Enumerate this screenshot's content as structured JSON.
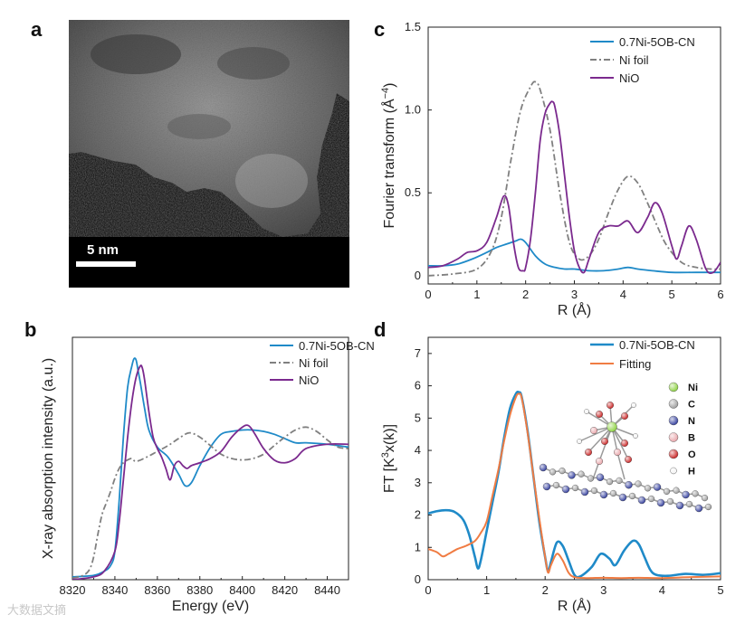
{
  "panels": {
    "a": {
      "letter": "a",
      "scale_bar_label": "5 nm"
    },
    "b": {
      "letter": "b"
    },
    "c": {
      "letter": "c"
    },
    "d": {
      "letter": "d"
    }
  },
  "colors": {
    "sample": "#1f8ac8",
    "ni_foil": "#808080",
    "nio": "#7b2a8e",
    "fitting": "#f07c43"
  },
  "inset_legend": {
    "atoms": [
      {
        "label": "Ni",
        "color": "#8bd13d"
      },
      {
        "label": "C",
        "color": "#9a9a9a"
      },
      {
        "label": "N",
        "color": "#2e3a9b"
      },
      {
        "label": "B",
        "color": "#e8a3a8"
      },
      {
        "label": "O",
        "color": "#c81e1e"
      },
      {
        "label": "H",
        "color": "#f2f2f2"
      }
    ]
  },
  "watermark": "大数据文摘",
  "chart_data": [
    {
      "id": "b",
      "type": "line",
      "title": "",
      "xlabel": "Energy (eV)",
      "ylabel": "X-ray absorption intensity (a.u.)",
      "xlim": [
        8320,
        8450
      ],
      "ylim": [
        0,
        1.7
      ],
      "xticks": [
        8320,
        8340,
        8360,
        8380,
        8400,
        8420,
        8440
      ],
      "yticks": [],
      "legend_position": "top-right",
      "series": [
        {
          "name": "0.7Ni-5OB-CN",
          "color": "#1f8ac8",
          "dash": "",
          "x": [
            8320,
            8330,
            8335,
            8338,
            8340,
            8342,
            8344,
            8346,
            8348,
            8349,
            8350,
            8351,
            8352,
            8354,
            8356,
            8360,
            8365,
            8370,
            8373,
            8376,
            8380,
            8385,
            8390,
            8395,
            8400,
            8405,
            8410,
            8415,
            8420,
            8425,
            8430,
            8440,
            8450
          ],
          "y": [
            0.02,
            0.03,
            0.06,
            0.1,
            0.2,
            0.55,
            1.0,
            1.35,
            1.5,
            1.55,
            1.54,
            1.46,
            1.38,
            1.2,
            1.05,
            0.93,
            0.86,
            0.74,
            0.66,
            0.68,
            0.8,
            0.93,
            1.02,
            1.04,
            1.05,
            1.05,
            1.04,
            1.02,
            0.99,
            0.96,
            0.96,
            0.95,
            0.93
          ]
        },
        {
          "name": "Ni foil",
          "color": "#808080",
          "dash": "7,3,2,3",
          "x": [
            8320,
            8325,
            8328,
            8330,
            8332,
            8334,
            8336,
            8338,
            8340,
            8342,
            8344,
            8346,
            8348,
            8350,
            8355,
            8360,
            8365,
            8370,
            8375,
            8380,
            8385,
            8390,
            8395,
            8400,
            8405,
            8410,
            8415,
            8420,
            8425,
            8430,
            8435,
            8440,
            8445,
            8450
          ],
          "y": [
            0.01,
            0.03,
            0.07,
            0.16,
            0.32,
            0.46,
            0.54,
            0.62,
            0.71,
            0.78,
            0.82,
            0.84,
            0.85,
            0.83,
            0.86,
            0.9,
            0.94,
            0.99,
            1.03,
            1.0,
            0.94,
            0.88,
            0.85,
            0.84,
            0.85,
            0.88,
            0.94,
            1.0,
            1.05,
            1.07,
            1.04,
            0.98,
            0.93,
            0.92
          ]
        },
        {
          "name": "NiO",
          "color": "#7b2a8e",
          "dash": "",
          "x": [
            8320,
            8330,
            8335,
            8340,
            8342,
            8344,
            8346,
            8348,
            8350,
            8352,
            8353,
            8354,
            8356,
            8358,
            8360,
            8362,
            8364,
            8366,
            8368,
            8370,
            8372,
            8374,
            8376,
            8380,
            8385,
            8390,
            8395,
            8400,
            8403,
            8406,
            8410,
            8415,
            8420,
            8425,
            8430,
            8440,
            8450
          ],
          "y": [
            0.0,
            0.02,
            0.06,
            0.2,
            0.4,
            0.7,
            1.0,
            1.25,
            1.42,
            1.5,
            1.48,
            1.4,
            1.18,
            1.0,
            0.92,
            0.86,
            0.78,
            0.7,
            0.8,
            0.83,
            0.8,
            0.78,
            0.8,
            0.82,
            0.85,
            0.9,
            1.0,
            1.07,
            1.08,
            1.02,
            0.92,
            0.84,
            0.82,
            0.85,
            0.92,
            0.95,
            0.95
          ]
        }
      ]
    },
    {
      "id": "c",
      "type": "line",
      "title": "",
      "xlabel": "R (Å)",
      "ylabel": "Fourier transform (Å",
      "ylabel_sup": "−4",
      "ylabel_end": ")",
      "xlim": [
        0,
        6
      ],
      "ylim": [
        -0.05,
        1.5
      ],
      "xticks": [
        0,
        1,
        2,
        3,
        4,
        5,
        6
      ],
      "yticks": [
        0,
        0.5,
        1.0,
        1.5
      ],
      "ytick_labels": [
        "0",
        "0.5",
        "1.0",
        "1.5"
      ],
      "legend_position": "top-right",
      "series": [
        {
          "name": "0.7Ni-5OB-CN",
          "color": "#1f8ac8",
          "dash": "",
          "x": [
            0,
            0.3,
            0.6,
            0.9,
            1.2,
            1.4,
            1.6,
            1.8,
            1.9,
            2.0,
            2.2,
            2.4,
            2.6,
            2.8,
            3.0,
            3.3,
            3.6,
            3.9,
            4.1,
            4.3,
            4.6,
            5.0,
            5.5,
            6.0
          ],
          "y": [
            0.06,
            0.06,
            0.07,
            0.1,
            0.14,
            0.17,
            0.19,
            0.21,
            0.22,
            0.2,
            0.12,
            0.07,
            0.05,
            0.04,
            0.04,
            0.03,
            0.03,
            0.04,
            0.05,
            0.04,
            0.03,
            0.02,
            0.02,
            0.02
          ]
        },
        {
          "name": "Ni foil",
          "color": "#808080",
          "dash": "7,3,2,3",
          "x": [
            0,
            0.5,
            1.0,
            1.3,
            1.5,
            1.7,
            1.9,
            2.1,
            2.2,
            2.3,
            2.5,
            2.7,
            2.9,
            3.1,
            3.3,
            3.5,
            3.7,
            3.9,
            4.1,
            4.3,
            4.5,
            4.7,
            4.9,
            5.2,
            5.5,
            5.8,
            6.0
          ],
          "y": [
            0.0,
            0.01,
            0.04,
            0.15,
            0.35,
            0.7,
            1.0,
            1.14,
            1.17,
            1.12,
            0.88,
            0.5,
            0.2,
            0.1,
            0.12,
            0.22,
            0.38,
            0.52,
            0.6,
            0.56,
            0.44,
            0.3,
            0.18,
            0.08,
            0.05,
            0.04,
            0.04
          ]
        },
        {
          "name": "NiO",
          "color": "#7b2a8e",
          "dash": "",
          "x": [
            0,
            0.3,
            0.6,
            0.8,
            1.0,
            1.2,
            1.4,
            1.55,
            1.65,
            1.75,
            1.85,
            1.95,
            2.0,
            2.1,
            2.2,
            2.3,
            2.4,
            2.5,
            2.55,
            2.6,
            2.7,
            2.8,
            2.9,
            3.0,
            3.1,
            3.2,
            3.3,
            3.5,
            3.7,
            3.9,
            4.1,
            4.3,
            4.5,
            4.65,
            4.8,
            5.0,
            5.1,
            5.2,
            5.35,
            5.5,
            5.7,
            5.85,
            6.0
          ],
          "y": [
            0.05,
            0.06,
            0.1,
            0.14,
            0.15,
            0.2,
            0.35,
            0.48,
            0.42,
            0.2,
            0.05,
            0.03,
            0.05,
            0.22,
            0.5,
            0.82,
            0.98,
            1.04,
            1.05,
            1.02,
            0.85,
            0.6,
            0.35,
            0.15,
            0.05,
            0.02,
            0.1,
            0.26,
            0.3,
            0.3,
            0.33,
            0.26,
            0.35,
            0.44,
            0.38,
            0.18,
            0.1,
            0.18,
            0.3,
            0.22,
            0.04,
            0.02,
            0.08
          ]
        }
      ]
    },
    {
      "id": "d",
      "type": "line",
      "title": "",
      "xlabel": "R (Å)",
      "ylabel": "FT [K",
      "ylabel_sup": "3",
      "ylabel_end": "x(k)]",
      "xlim": [
        0,
        5
      ],
      "ylim": [
        0,
        7.5
      ],
      "xticks": [
        0,
        1,
        2,
        3,
        4,
        5
      ],
      "yticks": [
        0,
        1,
        2,
        3,
        4,
        5,
        6,
        7
      ],
      "legend_position": "top-right",
      "series": [
        {
          "name": "0.7Ni-5OB-CN",
          "color": "#1f8ac8",
          "dash": "",
          "width": 2.6,
          "x": [
            0,
            0.15,
            0.3,
            0.45,
            0.6,
            0.7,
            0.8,
            0.85,
            0.9,
            1.0,
            1.1,
            1.2,
            1.3,
            1.4,
            1.5,
            1.55,
            1.6,
            1.7,
            1.8,
            1.9,
            2.0,
            2.05,
            2.1,
            2.2,
            2.3,
            2.4,
            2.5,
            2.6,
            2.8,
            2.95,
            3.1,
            3.2,
            3.35,
            3.5,
            3.6,
            3.7,
            3.8,
            3.9,
            4.1,
            4.4,
            4.7,
            5.0
          ],
          "y": [
            2.05,
            2.12,
            2.15,
            2.1,
            1.85,
            1.4,
            0.7,
            0.35,
            0.6,
            1.5,
            2.4,
            3.3,
            4.4,
            5.3,
            5.75,
            5.8,
            5.65,
            4.6,
            3.2,
            1.8,
            0.7,
            0.25,
            0.55,
            1.15,
            1.05,
            0.6,
            0.15,
            0.1,
            0.4,
            0.8,
            0.65,
            0.45,
            0.9,
            1.2,
            1.1,
            0.7,
            0.3,
            0.15,
            0.12,
            0.18,
            0.15,
            0.2
          ]
        },
        {
          "name": "Fitting",
          "color": "#f07c43",
          "dash": "",
          "width": 2.0,
          "x": [
            0,
            0.15,
            0.25,
            0.35,
            0.5,
            0.65,
            0.8,
            0.9,
            1.0,
            1.1,
            1.2,
            1.3,
            1.4,
            1.5,
            1.55,
            1.6,
            1.7,
            1.8,
            1.9,
            2.0,
            2.05,
            2.1,
            2.2,
            2.3,
            2.4,
            2.5,
            2.7,
            3.0,
            3.3,
            3.6,
            4.0,
            4.5,
            5.0
          ],
          "y": [
            0.95,
            0.85,
            0.72,
            0.8,
            0.95,
            1.05,
            1.2,
            1.45,
            1.8,
            2.6,
            3.4,
            4.3,
            5.1,
            5.65,
            5.75,
            5.62,
            4.55,
            3.2,
            1.9,
            0.7,
            0.22,
            0.45,
            0.8,
            0.6,
            0.22,
            0.08,
            0.05,
            0.06,
            0.05,
            0.06,
            0.05,
            0.08,
            0.1
          ]
        }
      ]
    }
  ]
}
